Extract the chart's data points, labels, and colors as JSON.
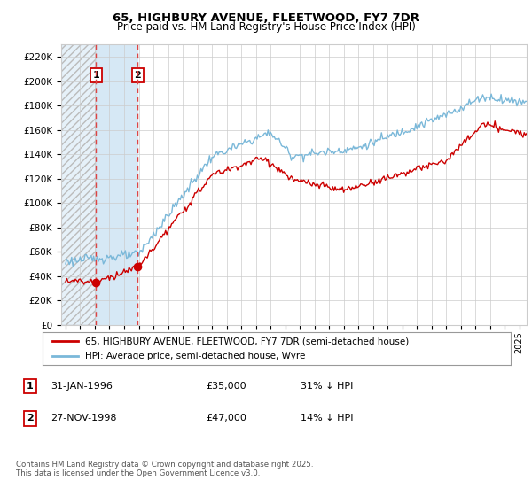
{
  "title": "65, HIGHBURY AVENUE, FLEETWOOD, FY7 7DR",
  "subtitle": "Price paid vs. HM Land Registry's House Price Index (HPI)",
  "hpi_color": "#7ab8d9",
  "price_color": "#cc0000",
  "sale1_date": 1996.08,
  "sale1_price": 35000,
  "sale2_date": 1998.92,
  "sale2_price": 48000,
  "ylim": [
    0,
    230000
  ],
  "yticks": [
    0,
    20000,
    40000,
    60000,
    80000,
    100000,
    120000,
    140000,
    160000,
    180000,
    200000,
    220000
  ],
  "ytick_labels": [
    "£0",
    "£20K",
    "£40K",
    "£60K",
    "£80K",
    "£100K",
    "£120K",
    "£140K",
    "£160K",
    "£180K",
    "£200K",
    "£220K"
  ],
  "xmin": 1993.7,
  "xmax": 2025.5,
  "legend_line1": "65, HIGHBURY AVENUE, FLEETWOOD, FY7 7DR (semi-detached house)",
  "legend_line2": "HPI: Average price, semi-detached house, Wyre",
  "footnote": "Contains HM Land Registry data © Crown copyright and database right 2025.\nThis data is licensed under the Open Government Licence v3.0.",
  "shade_color": "#d6e8f5",
  "hatch_color": "#c0c0c0",
  "vline_color": "#dd4444"
}
